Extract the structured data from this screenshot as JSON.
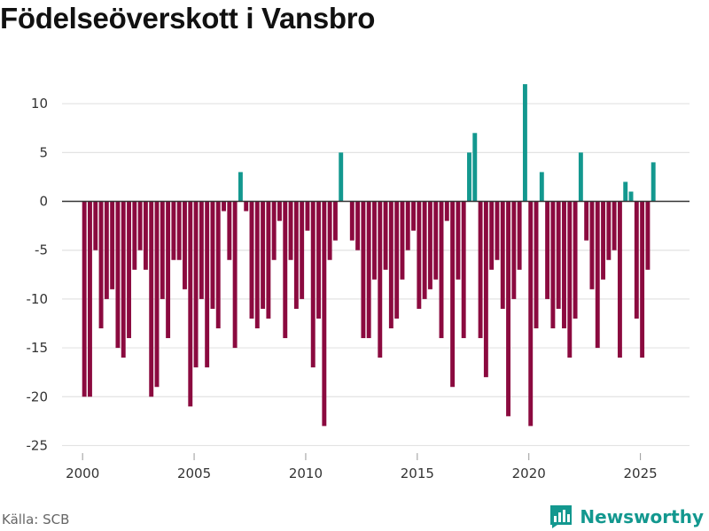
{
  "header": {
    "title": "Födelseöverskott i Vansbro"
  },
  "footer": {
    "source": "Källa: SCB",
    "brand": "Newsworthy"
  },
  "colors": {
    "negative": "#8b0a3f",
    "positive": "#13988f",
    "grid": "#e3e3e3",
    "zero": "#333333"
  },
  "chart_data": {
    "type": "bar",
    "title": "Födelseöverskott i Vansbro",
    "xlabel": "",
    "ylabel": "",
    "xlim": [
      1999,
      2027.2
    ],
    "ylim": [
      -26.5,
      15
    ],
    "grid": true,
    "x_ticks": [
      2000,
      2005,
      2010,
      2015,
      2020,
      2025
    ],
    "y_ticks": [
      10,
      5,
      0,
      -5,
      -10,
      -15,
      -20,
      -25
    ],
    "x_start": 2000,
    "period": "month-quarter (quarterly values)",
    "values": [
      -20,
      -20,
      -5,
      -13,
      -10,
      -9,
      -15,
      -16,
      -14,
      -7,
      -5,
      -7,
      -20,
      -19,
      -10,
      -14,
      -6,
      -6,
      -9,
      -21,
      -17,
      -10,
      -17,
      -11,
      -13,
      -1,
      -6,
      -15,
      3,
      -1,
      -12,
      -13,
      -11,
      -12,
      -6,
      -2,
      -14,
      -6,
      -11,
      -10,
      -3,
      -17,
      -12,
      -23,
      -6,
      -4,
      5,
      0,
      -4,
      -5,
      -14,
      -14,
      -8,
      -16,
      -7,
      -13,
      -12,
      -8,
      -5,
      -3,
      -11,
      -10,
      -9,
      -8,
      -14,
      -2,
      -19,
      -8,
      -14,
      5,
      7,
      -14,
      -18,
      -7,
      -6,
      -11,
      -22,
      -10,
      -7,
      12,
      -23,
      -13,
      3,
      -10,
      -13,
      -11,
      -13,
      -16,
      -12,
      5,
      -4,
      -9,
      -15,
      -8,
      -6,
      -5,
      -16,
      2,
      1,
      -12,
      -16,
      -7,
      4
    ]
  }
}
